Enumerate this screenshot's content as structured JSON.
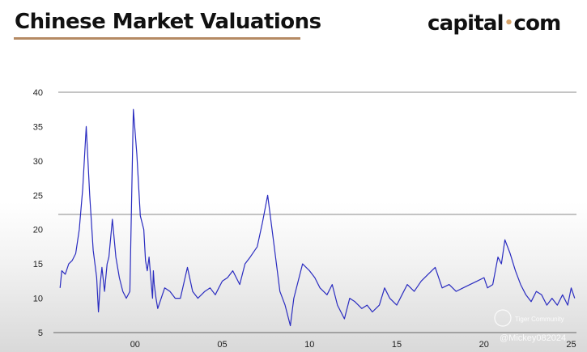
{
  "header": {
    "title": "Chinese Market Valuations",
    "brand_left": "capital",
    "brand_dot": "•",
    "brand_right": "com"
  },
  "colors": {
    "line": "#2a2cc0",
    "reference_line": "#8a8a8a",
    "underline": "#b58a63",
    "brand_dot": "#d8a46a"
  },
  "watermark": {
    "line1": "Tiger Community",
    "line2": "@Mickey082024"
  },
  "chart_data": {
    "type": "line",
    "ylim": [
      5,
      40
    ],
    "xlim": [
      1995.6,
      2025.3
    ],
    "y_ticks": [
      40,
      35,
      30,
      25,
      20,
      15,
      10,
      5
    ],
    "x_ticks": [
      {
        "value": 2000,
        "label": "00"
      },
      {
        "value": 2005,
        "label": "05"
      },
      {
        "value": 2010,
        "label": "10"
      },
      {
        "value": 2015,
        "label": "15"
      },
      {
        "value": 2020,
        "label": "20"
      },
      {
        "value": 2025,
        "label": "25"
      }
    ],
    "reference_lines": [
      40,
      22.2
    ],
    "series": [
      {
        "x": [
          1995.7,
          1995.8,
          1996.0,
          1996.2,
          1996.4,
          1996.6,
          1996.8,
          1997.0,
          1997.2,
          1997.4,
          1997.6,
          1997.8,
          1997.9,
          1998.0,
          1998.1,
          1998.25,
          1998.4,
          1998.5,
          1998.7,
          1998.9,
          1999.1,
          1999.3,
          1999.5,
          1999.7,
          1999.9,
          2000.1,
          2000.3,
          2000.5,
          2000.6,
          2000.7,
          2000.8,
          2000.9,
          2001.0,
          2001.05,
          2001.1,
          2001.2,
          2001.3,
          2001.5,
          2001.7,
          2002.0,
          2002.3,
          2002.6,
          2003.0,
          2003.3,
          2003.6,
          2004.0,
          2004.3,
          2004.6,
          2004.8,
          2005.0,
          2005.3,
          2005.6,
          2006.0,
          2006.3,
          2006.6,
          2007.0,
          2007.3,
          2007.6,
          2007.9,
          2008.1,
          2008.3,
          2008.6,
          2008.9,
          2009.1,
          2009.3,
          2009.6,
          2010.0,
          2010.3,
          2010.6,
          2011.0,
          2011.3,
          2011.6,
          2012.0,
          2012.3,
          2012.6,
          2013.0,
          2013.3,
          2013.6,
          2014.0,
          2014.3,
          2014.6,
          2015.0,
          2015.3,
          2015.6,
          2016.0,
          2016.4,
          2016.8,
          2017.2,
          2017.6,
          2018.0,
          2018.4,
          2018.8,
          2019.2,
          2019.6,
          2020.0,
          2020.2,
          2020.5,
          2020.8,
          2021.0,
          2021.2,
          2021.5,
          2021.8,
          2022.1,
          2022.4,
          2022.7,
          2023.0,
          2023.3,
          2023.6,
          2023.9,
          2024.2,
          2024.5,
          2024.8,
          2025.0,
          2025.2
        ],
        "y": [
          11.5,
          14.0,
          13.5,
          15.0,
          15.5,
          16.5,
          20.0,
          26.0,
          35.0,
          25.0,
          17.0,
          13.0,
          8.0,
          12.0,
          14.5,
          11.0,
          15.0,
          16.0,
          21.5,
          16.0,
          13.0,
          11.0,
          10.0,
          11.0,
          37.5,
          31.0,
          22.0,
          20.0,
          15.5,
          14.0,
          16.0,
          13.0,
          10.0,
          14.0,
          12.0,
          10.0,
          8.5,
          10.0,
          11.5,
          11.0,
          10.0,
          10.0,
          14.5,
          11.0,
          10.0,
          11.0,
          11.5,
          10.5,
          11.5,
          12.5,
          13.0,
          14.0,
          12.0,
          15.0,
          16.0,
          17.5,
          21.0,
          25.0,
          19.0,
          15.0,
          11.0,
          9.0,
          6.0,
          10.0,
          12.0,
          15.0,
          14.0,
          13.0,
          11.5,
          10.5,
          12.0,
          9.0,
          7.0,
          10.0,
          9.5,
          8.5,
          9.0,
          8.0,
          9.0,
          11.5,
          10.0,
          9.0,
          10.5,
          12.0,
          11.0,
          12.5,
          13.5,
          14.5,
          11.5,
          12.0,
          11.0,
          11.5,
          12.0,
          12.5,
          13.0,
          11.5,
          12.0,
          16.0,
          15.0,
          18.5,
          16.5,
          14.0,
          12.0,
          10.5,
          9.5,
          11.0,
          10.5,
          9.0,
          10.0,
          9.0,
          10.5,
          9.0,
          11.5,
          10.0
        ]
      }
    ]
  }
}
